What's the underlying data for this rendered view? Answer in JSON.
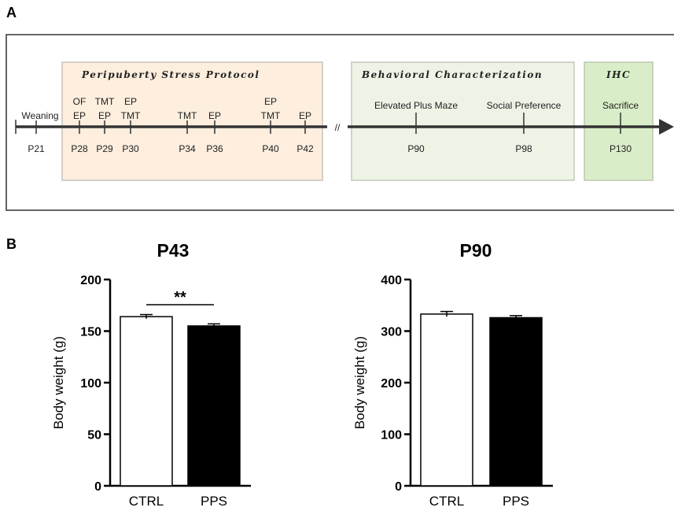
{
  "panel_a": {
    "letter": "A",
    "sections": [
      {
        "title": "Peripuberty Stress Protocol",
        "fill": "#fdeede",
        "stroke": "#c9c2b8"
      },
      {
        "title": "Behavioral Characterization",
        "fill": "#edf3e5",
        "stroke": "#c2c8bc"
      },
      {
        "title": "IHC",
        "fill": "#d9eec8",
        "stroke": "#bcc8b0"
      }
    ],
    "timeline": {
      "break_symbol": "//",
      "events": [
        {
          "day": "P21",
          "labels": [
            "Weaning"
          ]
        },
        {
          "day": "P28",
          "labels": [
            "OF",
            "EP"
          ]
        },
        {
          "day": "P29",
          "labels": [
            "TMT",
            "EP"
          ]
        },
        {
          "day": "P30",
          "labels": [
            "EP",
            "TMT"
          ]
        },
        {
          "day": "P34",
          "labels": [
            "TMT"
          ]
        },
        {
          "day": "P36",
          "labels": [
            "EP"
          ]
        },
        {
          "day": "P40",
          "labels": [
            "EP",
            "TMT"
          ]
        },
        {
          "day": "P42",
          "labels": [
            "EP"
          ]
        },
        {
          "day": "P90",
          "labels": [
            "Elevated Plus Maze"
          ]
        },
        {
          "day": "P98",
          "labels": [
            "Social Preference"
          ]
        },
        {
          "day": "P130",
          "labels": [
            "Sacrifice"
          ]
        }
      ]
    }
  },
  "panel_b": {
    "letter": "B"
  },
  "chart_data": [
    {
      "type": "bar",
      "title": "P43",
      "ylabel": "Body weight (g)",
      "xlabel": "",
      "ylim": [
        0,
        200
      ],
      "yticks": [
        0,
        50,
        100,
        150,
        200
      ],
      "categories": [
        "CTRL",
        "PPS"
      ],
      "values": [
        164,
        155
      ],
      "errors": [
        2,
        2
      ],
      "bar_colors": [
        "#ffffff",
        "#000000"
      ],
      "significance": {
        "label": "**",
        "between": [
          "CTRL",
          "PPS"
        ]
      }
    },
    {
      "type": "bar",
      "title": "P90",
      "ylabel": "Body weight (g)",
      "xlabel": "",
      "ylim": [
        0,
        400
      ],
      "yticks": [
        0,
        100,
        200,
        300,
        400
      ],
      "categories": [
        "CTRL",
        "PPS"
      ],
      "values": [
        333,
        326
      ],
      "errors": [
        5,
        4
      ],
      "bar_colors": [
        "#ffffff",
        "#000000"
      ]
    }
  ]
}
